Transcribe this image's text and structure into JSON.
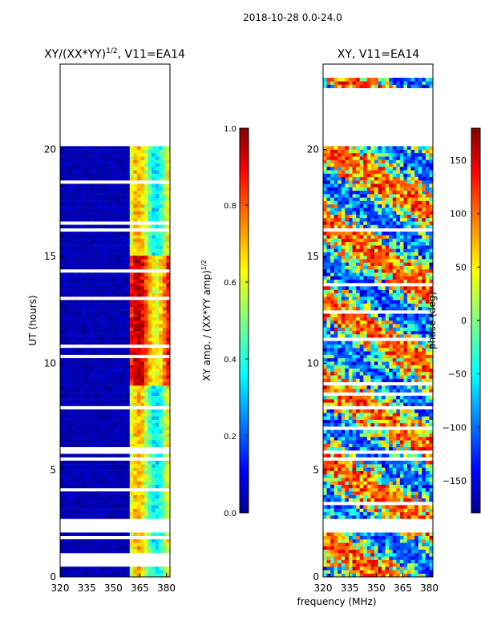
{
  "suptitle": "2018-10-28 0.0-24.0",
  "colors": {
    "low_value": "#00008f",
    "high_value": "#800000",
    "gap": "#ffffff",
    "frame": "#000000"
  },
  "chart_data": [
    {
      "type": "heatmap",
      "title_main": "XY/(XX*YY)",
      "title_sup": "1/2",
      "title_rest": ", V11=EA14",
      "ylabel": "UT (hours)",
      "xlabel": "",
      "x_ticks": [
        320,
        335,
        350,
        365,
        380
      ],
      "y_ticks": [
        0,
        5,
        10,
        15,
        20
      ],
      "xlim": [
        320,
        382
      ],
      "ylim": [
        0,
        24
      ],
      "colorbar": {
        "label": "XY amp. / (XX*YY amp)",
        "label_sup": "1/2",
        "ticks": [
          "0.0",
          "0.2",
          "0.4",
          "0.6",
          "0.8",
          "1.0"
        ],
        "range": [
          0,
          1
        ]
      },
      "data_gaps_hours": [
        [
          0.55,
          1.05
        ],
        [
          2.05,
          2.7
        ],
        [
          23.5,
          20.2
        ]
      ],
      "channel_band_mhz": [
        360,
        382
      ]
    },
    {
      "type": "heatmap",
      "title": "XY, V11=EA14",
      "ylabel": "",
      "xlabel": "frequency (MHz)",
      "x_ticks": [
        320,
        335,
        350,
        365,
        380
      ],
      "y_ticks": [
        0,
        5,
        10,
        15,
        20
      ],
      "xlim": [
        320,
        382
      ],
      "ylim": [
        0,
        24
      ],
      "colorbar": {
        "label": "phase (deg)",
        "ticks": [
          "150",
          "100",
          "50",
          "0",
          "−50",
          "−100",
          "−150"
        ],
        "range": [
          -180,
          180
        ]
      },
      "data_gaps_hours": [
        [
          2.05,
          2.7
        ],
        [
          22.8,
          20.2
        ]
      ]
    }
  ]
}
